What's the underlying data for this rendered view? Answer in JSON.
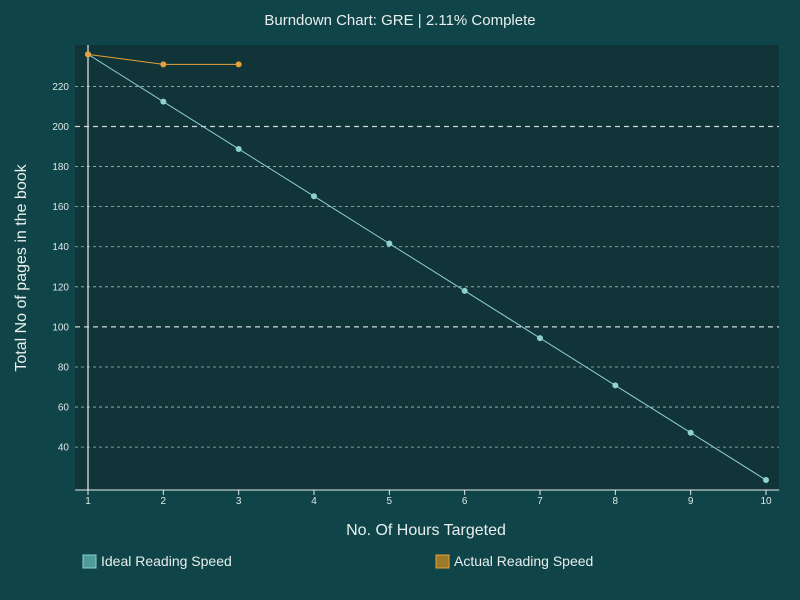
{
  "chart_data": {
    "type": "line",
    "title": "Burndown Chart: GRE | 2.11% Complete",
    "xlabel": "No. Of Hours Targeted",
    "ylabel": "Total No of pages in the book",
    "x": [
      1,
      2,
      3,
      4,
      5,
      6,
      7,
      8,
      9,
      10
    ],
    "x_ticks": [
      1,
      2,
      3,
      4,
      5,
      6,
      7,
      8,
      9,
      10
    ],
    "y_ticks": [
      40,
      60,
      80,
      100,
      120,
      140,
      160,
      180,
      200,
      220
    ],
    "xlim": [
      0.8,
      10.05
    ],
    "ylim": [
      20,
      237.6
    ],
    "grid": "horizontal-dashed",
    "legend_position": "bottom",
    "series": [
      {
        "name": "Ideal Reading Speed",
        "color": "#8fd0d0",
        "x": [
          1,
          2,
          3,
          4,
          5,
          6,
          7,
          8,
          9,
          10
        ],
        "values": [
          236,
          212.4,
          188.8,
          165.2,
          141.6,
          118,
          94.4,
          70.8,
          47.2,
          23.6
        ]
      },
      {
        "name": "Actual Reading Speed",
        "color": "#e8a13a",
        "x": [
          1,
          2,
          3
        ],
        "values": [
          236,
          231,
          231
        ]
      }
    ]
  },
  "colors": {
    "background": "#0f4448",
    "plot_background": "#103438",
    "grid": "#d7e3e2",
    "axis": "#e5ecec",
    "ideal_swatch": "#4f9a9a",
    "actual_swatch": "#9b7a2a"
  }
}
